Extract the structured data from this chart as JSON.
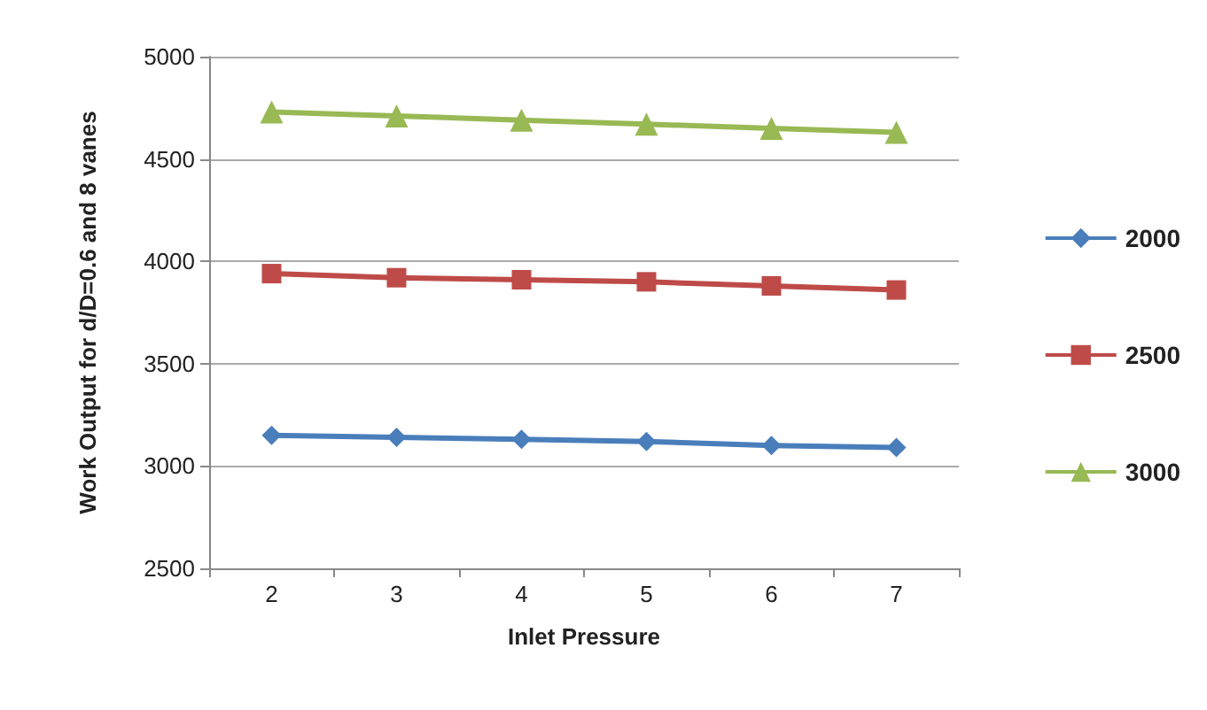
{
  "chart_data": {
    "type": "line",
    "xlabel": "Inlet Pressure",
    "ylabel": "Work Output for d/D=0.6 and 8 vanes",
    "categories": [
      "2",
      "3",
      "4",
      "5",
      "6",
      "7"
    ],
    "series": [
      {
        "name": "2000",
        "color": "#4a7ebb",
        "marker": "diamond",
        "values": [
          3150,
          3140,
          3130,
          3120,
          3100,
          3090
        ]
      },
      {
        "name": "2500",
        "color": "#be4b48",
        "marker": "square",
        "values": [
          3940,
          3920,
          3910,
          3900,
          3880,
          3860
        ]
      },
      {
        "name": "3000",
        "color": "#98b954",
        "marker": "triangle",
        "values": [
          4730,
          4710,
          4690,
          4670,
          4650,
          4630
        ]
      }
    ],
    "ylim": [
      2500,
      5000
    ],
    "yticks": [
      2500,
      3000,
      3500,
      4000,
      4500,
      5000
    ],
    "grid": "y",
    "legend": "right"
  }
}
